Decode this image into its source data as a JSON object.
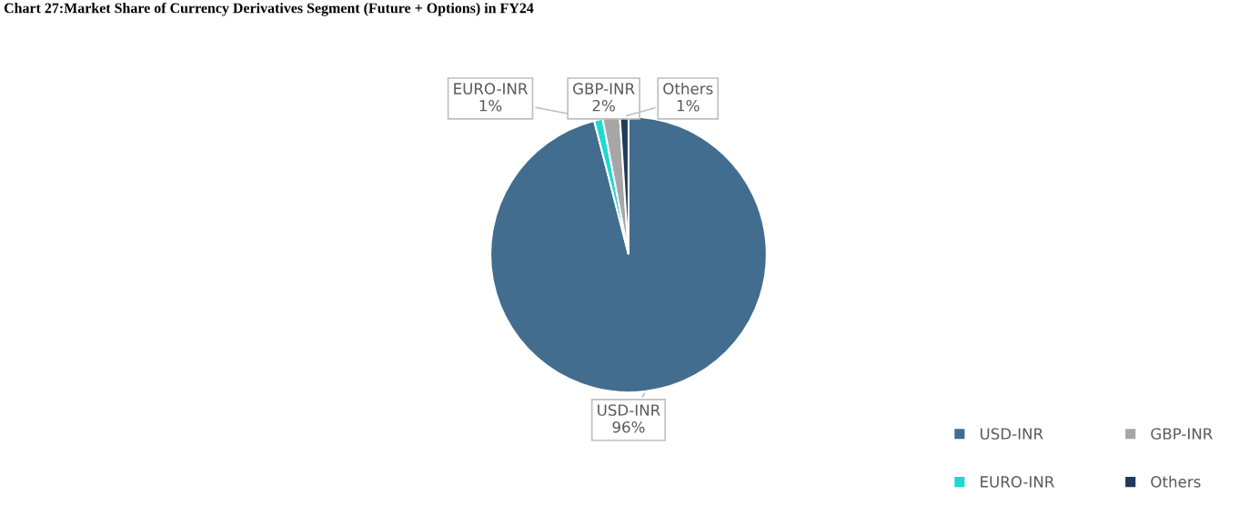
{
  "chart_data": {
    "type": "pie",
    "title": "Chart 27:Market Share of Currency Derivatives Segment (Future + Options) in FY24",
    "categories": [
      "USD-INR",
      "EURO-INR",
      "GBP-INR",
      "Others"
    ],
    "values": [
      96,
      1,
      2,
      1
    ],
    "value_labels": [
      "96%",
      "1%",
      "2%",
      "1%"
    ],
    "colors": [
      "#426d8f",
      "#1fd8d0",
      "#a6a6a6",
      "#1f3a5a"
    ],
    "legend": "bottom right"
  }
}
